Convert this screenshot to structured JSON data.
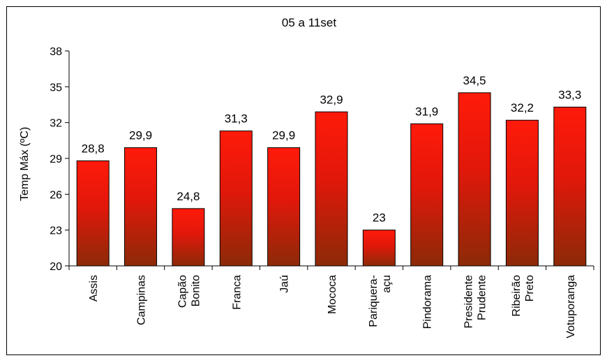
{
  "chart_data": {
    "type": "bar",
    "title": "05 a 11set",
    "xlabel": "",
    "ylabel": "Temp Máx (ºC)",
    "ylim": [
      20,
      38
    ],
    "yticks": [
      "20",
      "23",
      "26",
      "29",
      "32",
      "35",
      "38"
    ],
    "categories": [
      [
        "Assis"
      ],
      [
        "Campinas"
      ],
      [
        "Capão",
        "Bonito"
      ],
      [
        "Franca"
      ],
      [
        "Jaú"
      ],
      [
        "Mococa"
      ],
      [
        "Pariquera-",
        "açu"
      ],
      [
        "Pindorama"
      ],
      [
        "Presidente",
        "Prudente"
      ],
      [
        "Ribeirão",
        "Preto"
      ],
      [
        "Votuporanga"
      ]
    ],
    "values": [
      28.8,
      29.9,
      24.8,
      31.3,
      29.9,
      32.9,
      23,
      31.9,
      34.5,
      32.2,
      33.3
    ],
    "value_labels": [
      "28,8",
      "29,9",
      "24,8",
      "31,3",
      "29,9",
      "32,9",
      "23",
      "31,9",
      "34,5",
      "32,2",
      "33,3"
    ],
    "colors": {
      "bar_top": "#ff1a0a",
      "bar_bottom": "#8b2a08",
      "bar_stroke": "#000000"
    },
    "grid": false,
    "legend": "none"
  }
}
